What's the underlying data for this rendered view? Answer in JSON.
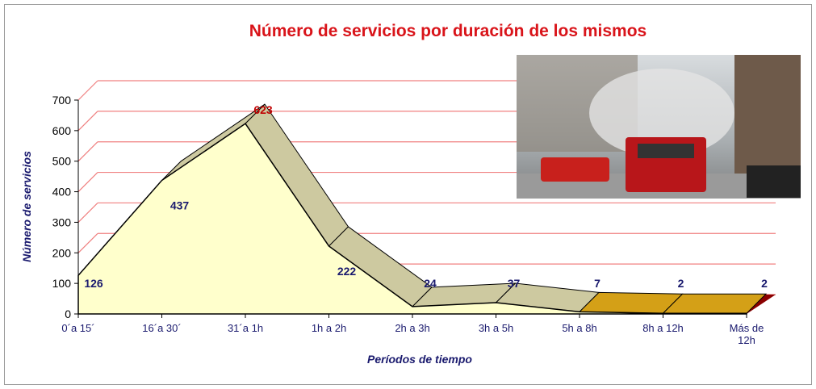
{
  "chart_data": {
    "type": "area3d",
    "title": "Número de servicios por duración de los mismos",
    "x_label": "Períodos de tiempo",
    "y_label": "Número de servicios",
    "categories": [
      "0´a 15´",
      "16´a 30´",
      "31´a 1h",
      "1h a 2h",
      "2h a 3h",
      "3h a 5h",
      "5h a 8h",
      "8h a 12h",
      "Más de 12h"
    ],
    "values": [
      126,
      437,
      623,
      222,
      24,
      37,
      7,
      2,
      2
    ],
    "color": "#ffffcc",
    "ylim": [
      0,
      700
    ],
    "yticks": [
      0,
      100,
      200,
      300,
      400,
      500,
      600,
      700
    ],
    "grid": true
  }
}
